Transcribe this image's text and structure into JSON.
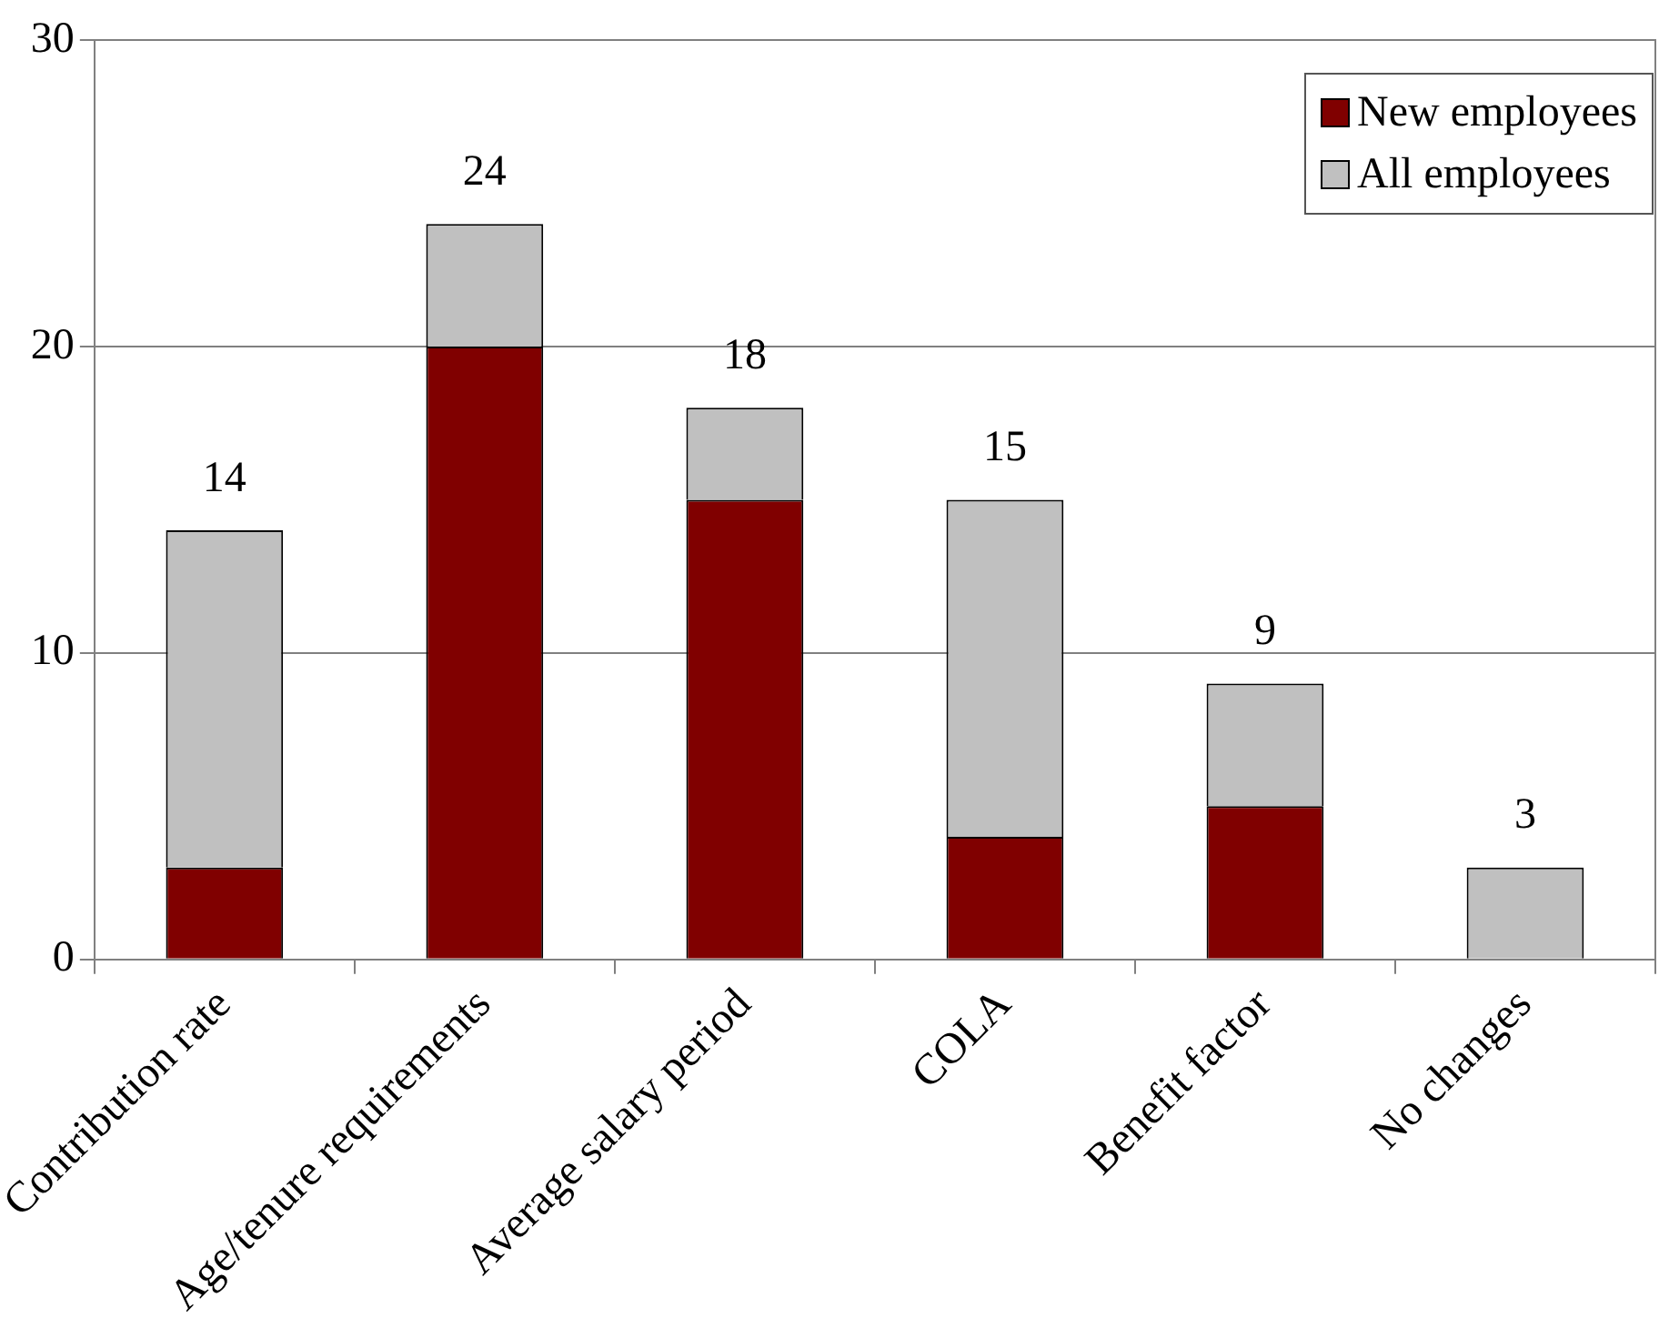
{
  "chart_data": {
    "type": "bar",
    "stacked": true,
    "categories": [
      "Contribution rate",
      "Age/tenure requirements",
      "Average salary period",
      "COLA",
      "Benefit factor",
      "No changes"
    ],
    "series": [
      {
        "name": "New employees",
        "color": "#800000",
        "values": [
          3,
          20,
          15,
          4,
          5,
          0
        ]
      },
      {
        "name": "All employees",
        "color": "#c0c0c0",
        "values": [
          11,
          4,
          3,
          11,
          4,
          3
        ]
      }
    ],
    "totals": [
      "14",
      "24",
      "18",
      "15",
      "9",
      "3"
    ],
    "ylim": [
      0,
      30
    ],
    "yticks": [
      0,
      10,
      20,
      30
    ],
    "grid": "y",
    "legend": "top right"
  }
}
